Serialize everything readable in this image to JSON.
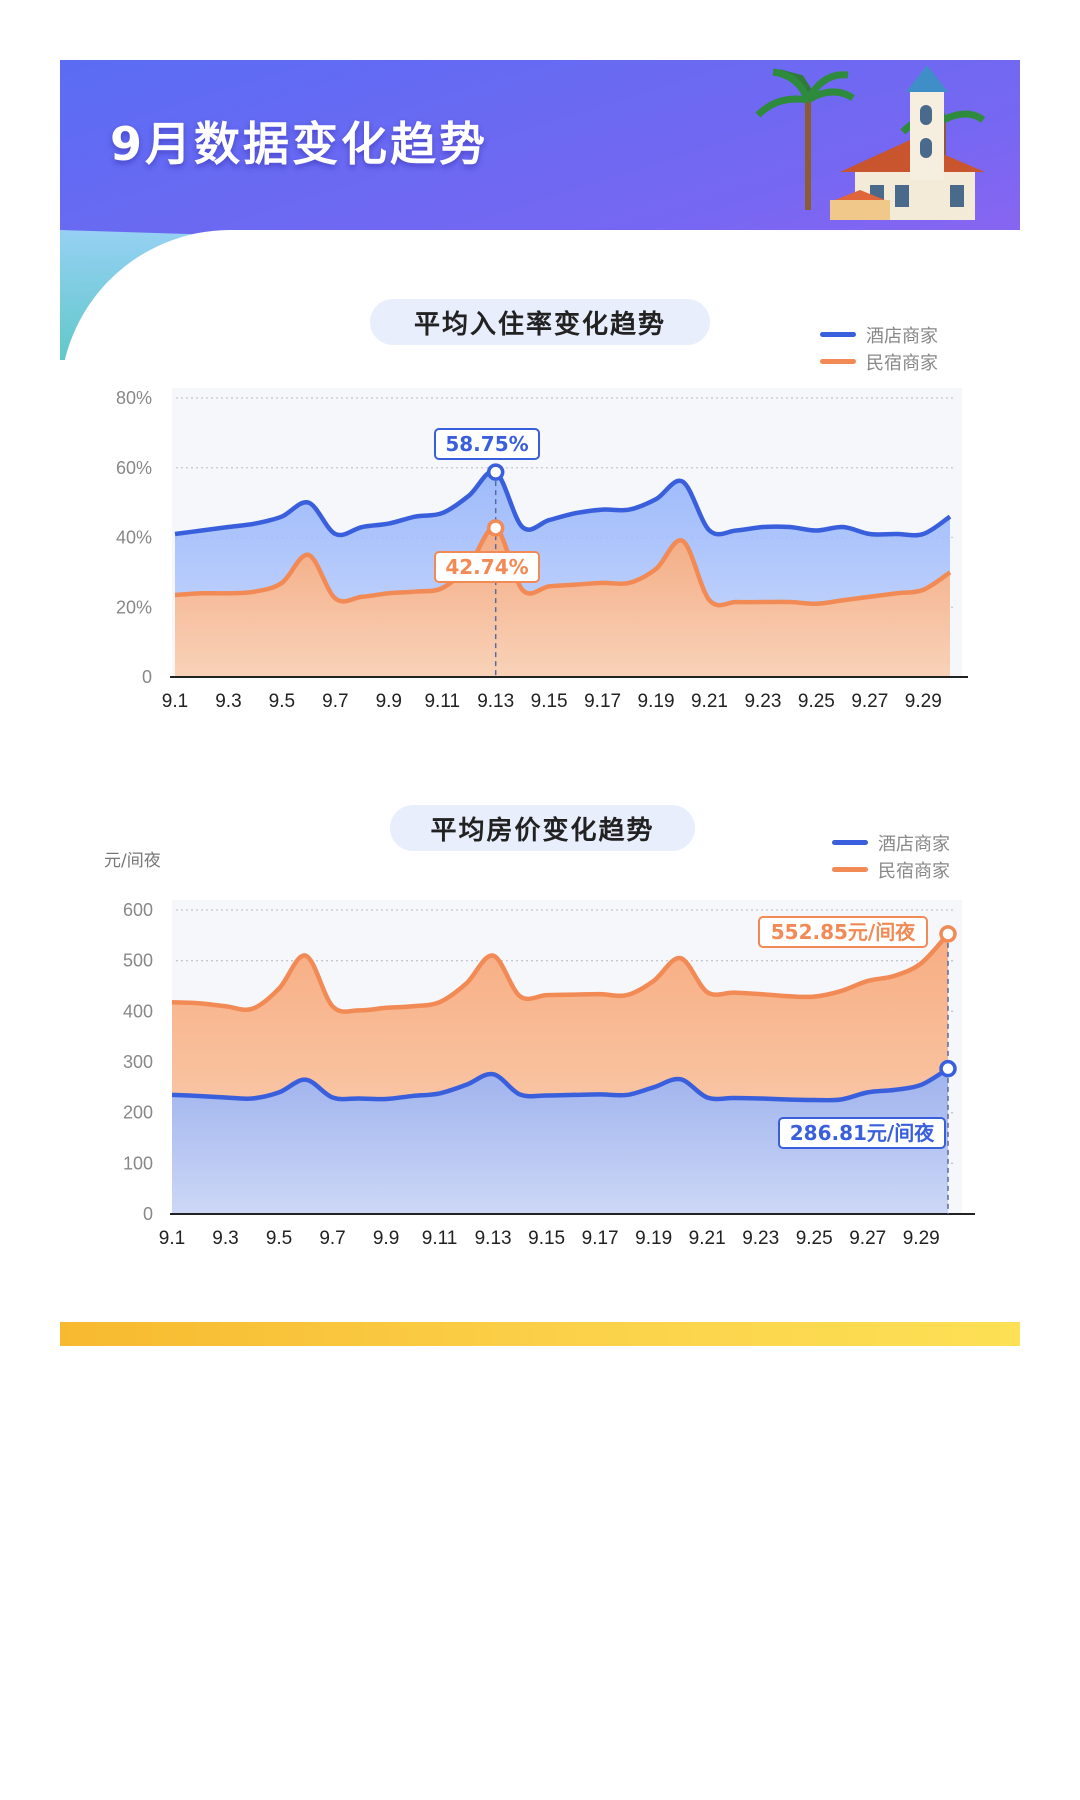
{
  "header": {
    "title": "9月数据变化趋势"
  },
  "colors": {
    "hotel": "#3a5fdc",
    "homestay": "#f28a55",
    "banner_start": "#5d6cf2",
    "banner_end": "#8d5cf4",
    "pill_bg": "#e9eefc",
    "bottom_bar": "#f9c73a"
  },
  "chart_data": [
    {
      "type": "area",
      "title": "平均入住率变化趋势",
      "ylabel": "",
      "ylim": [
        0,
        80
      ],
      "yticks": [
        "0",
        "20%",
        "40%",
        "60%",
        "80%"
      ],
      "x": [
        "9.1",
        "9.2",
        "9.3",
        "9.4",
        "9.5",
        "9.6",
        "9.7",
        "9.8",
        "9.9",
        "9.10",
        "9.11",
        "9.12",
        "9.13",
        "9.14",
        "9.15",
        "9.16",
        "9.17",
        "9.18",
        "9.19",
        "9.20",
        "9.21",
        "9.22",
        "9.23",
        "9.24",
        "9.25",
        "9.26",
        "9.27",
        "9.28",
        "9.29",
        "9.30"
      ],
      "xtick_labels": [
        "9.1",
        "9.3",
        "9.5",
        "9.7",
        "9.9",
        "9.11",
        "9.13",
        "9.15",
        "9.17",
        "9.19",
        "9.21",
        "9.23",
        "9.25",
        "9.27",
        "9.29"
      ],
      "series": [
        {
          "name": "酒店商家",
          "values": [
            41,
            42,
            43,
            44,
            46,
            50,
            41,
            43,
            44,
            46,
            47,
            52,
            58.75,
            43,
            45,
            47,
            48,
            48,
            51,
            56,
            42,
            42,
            43,
            43,
            42,
            43,
            41,
            41,
            41,
            46
          ]
        },
        {
          "name": "民宿商家",
          "values": [
            23.5,
            24,
            24,
            24.5,
            27,
            35,
            22.5,
            23,
            24,
            24.5,
            25.5,
            32,
            42.74,
            25,
            26,
            26.5,
            27,
            27,
            31,
            39,
            22,
            21.5,
            21.5,
            21.5,
            21,
            22,
            23,
            24,
            25,
            30
          ]
        }
      ],
      "annotations": [
        {
          "series": "酒店商家",
          "x": "9.13",
          "label": "58.75%"
        },
        {
          "series": "民宿商家",
          "x": "9.13",
          "label": "42.74%"
        }
      ],
      "legend_position": "top-right",
      "grid": true
    },
    {
      "type": "area",
      "title": "平均房价变化趋势",
      "ylabel": "元/间夜",
      "ylim": [
        0,
        600
      ],
      "yticks": [
        "0",
        "100",
        "200",
        "300",
        "400",
        "500",
        "600"
      ],
      "x": [
        "9.1",
        "9.2",
        "9.3",
        "9.4",
        "9.5",
        "9.6",
        "9.7",
        "9.8",
        "9.9",
        "9.10",
        "9.11",
        "9.12",
        "9.13",
        "9.14",
        "9.15",
        "9.16",
        "9.17",
        "9.18",
        "9.19",
        "9.20",
        "9.21",
        "9.22",
        "9.23",
        "9.24",
        "9.25",
        "9.26",
        "9.27",
        "9.28",
        "9.29",
        "9.30"
      ],
      "xtick_labels": [
        "9.1",
        "9.3",
        "9.5",
        "9.7",
        "9.9",
        "9.11",
        "9.13",
        "9.15",
        "9.17",
        "9.19",
        "9.21",
        "9.23",
        "9.25",
        "9.27",
        "9.29"
      ],
      "series": [
        {
          "name": "酒店商家",
          "values": [
            235,
            233,
            230,
            228,
            240,
            265,
            230,
            228,
            227,
            233,
            238,
            255,
            276,
            236,
            234,
            235,
            236,
            235,
            250,
            266,
            230,
            229,
            228,
            226,
            225,
            226,
            240,
            245,
            255,
            286.81
          ]
        },
        {
          "name": "民宿商家",
          "values": [
            418,
            416,
            410,
            405,
            445,
            510,
            410,
            402,
            407,
            410,
            418,
            455,
            510,
            430,
            432,
            433,
            434,
            432,
            460,
            505,
            438,
            437,
            434,
            430,
            429,
            440,
            460,
            470,
            495,
            552.85
          ]
        }
      ],
      "annotations": [
        {
          "series": "民宿商家",
          "x": "9.30",
          "label": "552.85元/间夜"
        },
        {
          "series": "酒店商家",
          "x": "9.30",
          "label": "286.81元/间夜"
        }
      ],
      "legend_position": "top-right",
      "grid": true
    }
  ]
}
